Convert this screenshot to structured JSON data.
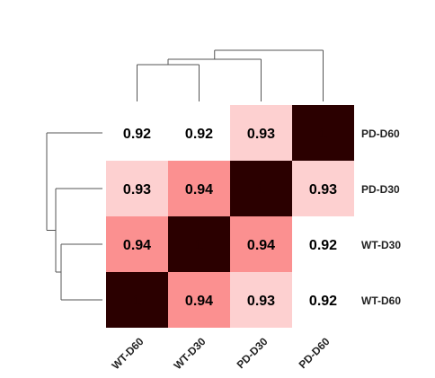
{
  "chart_data": {
    "type": "heatmap",
    "title": "",
    "row_labels": [
      "PD-D60",
      "PD-D30",
      "WT-D30",
      "WT-D60"
    ],
    "col_labels": [
      "WT-D60",
      "WT-D30",
      "PD-D30",
      "PD-D60"
    ],
    "values": [
      [
        0.92,
        0.92,
        0.93,
        1
      ],
      [
        0.93,
        0.94,
        1,
        0.93
      ],
      [
        0.94,
        1,
        0.94,
        0.92
      ],
      [
        1,
        0.94,
        0.93,
        0.92
      ]
    ],
    "display": [
      [
        "0.92",
        "0.92",
        "0.93",
        "1"
      ],
      [
        "0.93",
        "0.94",
        "1",
        "0.93"
      ],
      [
        "0.94",
        "1",
        "0.94",
        "0.92"
      ],
      [
        "1",
        "0.94",
        "0.93",
        "0.92"
      ]
    ],
    "color_scale": {
      "0.92": "#ffffff",
      "0.93": "#fdd0d0",
      "0.94": "#fb9090",
      "1": "#2b0000"
    },
    "text_colors": {
      "dark_cell": "#2b0000",
      "light_cell": "#000000"
    },
    "dendrograms": [
      "top",
      "left"
    ]
  }
}
